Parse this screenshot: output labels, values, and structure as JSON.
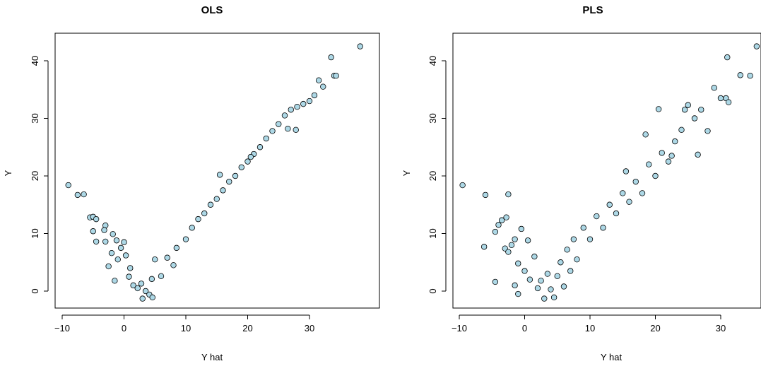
{
  "chart_data": [
    {
      "type": "scatter",
      "title": "OLS",
      "xlabel": "Y hat",
      "ylabel": "Y",
      "xlim": [
        -10,
        40
      ],
      "ylim": [
        -3,
        45
      ],
      "xticks": [
        -10,
        0,
        10,
        20,
        30
      ],
      "yticks": [
        0,
        10,
        20,
        30,
        40
      ],
      "marker_fill": "#add8e6",
      "marker_edge": "#000000",
      "grid": false,
      "points": [
        [
          -9,
          18.4
        ],
        [
          -7.5,
          16.7
        ],
        [
          -6.5,
          16.8
        ],
        [
          -5.5,
          12.8
        ],
        [
          -5,
          12.9
        ],
        [
          -4.5,
          12.5
        ],
        [
          -5,
          10.4
        ],
        [
          -4.5,
          8.6
        ],
        [
          -3,
          11.4
        ],
        [
          -3.2,
          10.6
        ],
        [
          -3,
          8.6
        ],
        [
          -2.5,
          4.3
        ],
        [
          -1.8,
          9.9
        ],
        [
          -1.2,
          8.8
        ],
        [
          -2,
          6.6
        ],
        [
          -1.5,
          1.8
        ],
        [
          -1,
          5.5
        ],
        [
          0,
          8.5
        ],
        [
          -0.5,
          7.5
        ],
        [
          0.3,
          6.2
        ],
        [
          1,
          4
        ],
        [
          0.8,
          2.5
        ],
        [
          1.5,
          1
        ],
        [
          2.2,
          0.5
        ],
        [
          3,
          -1.3
        ],
        [
          2.8,
          1.3
        ],
        [
          3.5,
          0
        ],
        [
          4.1,
          -0.6
        ],
        [
          4.5,
          2.1
        ],
        [
          5,
          5.5
        ],
        [
          4.6,
          -1.1
        ],
        [
          6,
          2.6
        ],
        [
          7,
          5.8
        ],
        [
          8,
          4.5
        ],
        [
          8.5,
          7.5
        ],
        [
          10,
          9
        ],
        [
          11,
          11
        ],
        [
          12,
          12.5
        ],
        [
          13,
          13.5
        ],
        [
          14,
          15
        ],
        [
          15,
          16
        ],
        [
          16,
          17.5
        ],
        [
          17,
          19
        ],
        [
          18,
          20
        ],
        [
          19,
          21.5
        ],
        [
          20,
          22.5
        ],
        [
          21,
          23.8
        ],
        [
          22,
          25
        ],
        [
          23,
          26.5
        ],
        [
          24,
          27.8
        ],
        [
          25,
          29
        ],
        [
          26,
          30.5
        ],
        [
          27,
          31.5
        ],
        [
          28,
          32
        ],
        [
          29,
          32.5
        ],
        [
          30,
          33
        ],
        [
          30.8,
          34
        ],
        [
          31.5,
          36.6
        ],
        [
          32.2,
          35.5
        ],
        [
          33.5,
          40.6
        ],
        [
          34,
          37.4
        ],
        [
          34.3,
          37.4
        ],
        [
          38.2,
          42.5
        ],
        [
          20.5,
          23.3
        ],
        [
          26.5,
          28.2
        ],
        [
          27.8,
          28
        ],
        [
          15.5,
          20.2
        ]
      ]
    },
    {
      "type": "scatter",
      "title": "PLS",
      "xlabel": "Y hat",
      "ylabel": "Y",
      "xlim": [
        -10,
        35
      ],
      "ylim": [
        -3,
        45
      ],
      "xticks": [
        -10,
        0,
        10,
        20,
        30
      ],
      "yticks": [
        0,
        10,
        20,
        30,
        40
      ],
      "marker_fill": "#add8e6",
      "marker_edge": "#000000",
      "grid": false,
      "points": [
        [
          -9.5,
          18.4
        ],
        [
          -6,
          16.7
        ],
        [
          -2.5,
          16.8
        ],
        [
          -6.2,
          7.7
        ],
        [
          -4.5,
          10.3
        ],
        [
          -4.5,
          1.6
        ],
        [
          -4,
          11.5
        ],
        [
          -3.5,
          12.3
        ],
        [
          -2.8,
          12.8
        ],
        [
          -3,
          7.4
        ],
        [
          -2.5,
          6.8
        ],
        [
          -2,
          8
        ],
        [
          -1.5,
          9
        ],
        [
          -1,
          4.8
        ],
        [
          -0.5,
          10.8
        ],
        [
          0,
          3.5
        ],
        [
          0.5,
          8.8
        ],
        [
          -1.5,
          1
        ],
        [
          -1,
          -0.5
        ],
        [
          0.8,
          2
        ],
        [
          1.5,
          6
        ],
        [
          2,
          0.5
        ],
        [
          2.5,
          1.8
        ],
        [
          3,
          -1.3
        ],
        [
          3.5,
          3
        ],
        [
          4,
          0.3
        ],
        [
          4.5,
          -1.1
        ],
        [
          5,
          2.6
        ],
        [
          5.5,
          5
        ],
        [
          6,
          0.8
        ],
        [
          6.5,
          7.2
        ],
        [
          7,
          3.5
        ],
        [
          7.5,
          9
        ],
        [
          8,
          5.5
        ],
        [
          9,
          11
        ],
        [
          10,
          9
        ],
        [
          11,
          13
        ],
        [
          12,
          11
        ],
        [
          13,
          15
        ],
        [
          14,
          13.5
        ],
        [
          15,
          17
        ],
        [
          16,
          15.5
        ],
        [
          17,
          19
        ],
        [
          18,
          17
        ],
        [
          19,
          22
        ],
        [
          20,
          20
        ],
        [
          21,
          24
        ],
        [
          22,
          22.5
        ],
        [
          23,
          26
        ],
        [
          24,
          28
        ],
        [
          24.5,
          31.5
        ],
        [
          25,
          32.3
        ],
        [
          26,
          30
        ],
        [
          27,
          31.5
        ],
        [
          28,
          27.8
        ],
        [
          29,
          35.3
        ],
        [
          30,
          33.5
        ],
        [
          30.8,
          33.5
        ],
        [
          31.2,
          32.8
        ],
        [
          31,
          40.6
        ],
        [
          33,
          37.5
        ],
        [
          34.5,
          37.4
        ],
        [
          35.5,
          42.5
        ],
        [
          20.5,
          31.6
        ],
        [
          22.5,
          23.5
        ],
        [
          26.5,
          23.7
        ],
        [
          15.5,
          20.8
        ],
        [
          18.5,
          27.2
        ]
      ]
    }
  ]
}
